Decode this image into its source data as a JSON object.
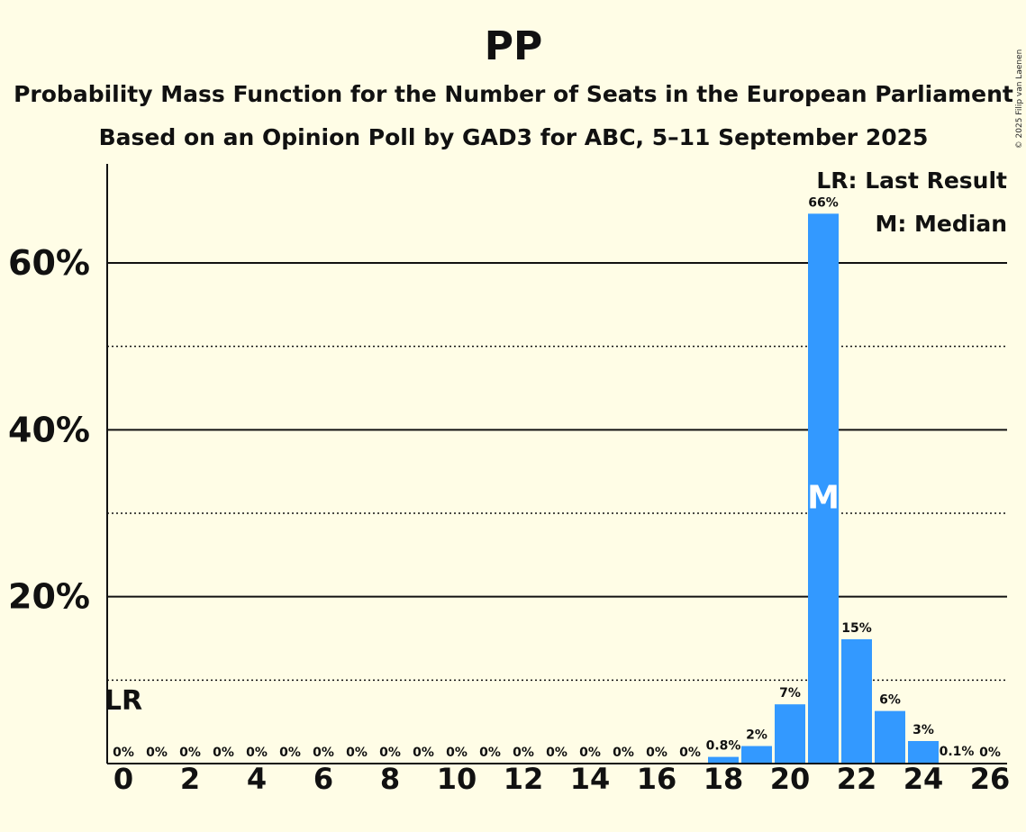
{
  "chart_data": {
    "type": "bar",
    "title": "PP",
    "subtitle_1": "Probability Mass Function for the Number of Seats in the European Parliament",
    "subtitle_2": "Based on an Opinion Poll by GAD3 for ABC, 5–11 September 2025",
    "copyright": "© 2025 Filip van Laenen",
    "x": [
      0,
      1,
      2,
      3,
      4,
      5,
      6,
      7,
      8,
      9,
      10,
      11,
      12,
      13,
      14,
      15,
      16,
      17,
      18,
      19,
      20,
      21,
      22,
      23,
      24,
      25,
      26
    ],
    "values": [
      0,
      0,
      0,
      0,
      0,
      0,
      0,
      0,
      0,
      0,
      0,
      0,
      0,
      0,
      0,
      0,
      0,
      0,
      0.8,
      2.1,
      7.1,
      65.9,
      14.9,
      6.3,
      2.7,
      0.1,
      0
    ],
    "labels": [
      "0%",
      "0%",
      "0%",
      "0%",
      "0%",
      "0%",
      "0%",
      "0%",
      "0%",
      "0%",
      "0%",
      "0%",
      "0%",
      "0%",
      "0%",
      "0%",
      "0%",
      "0%",
      "0.8%",
      "2%",
      "7%",
      "66%",
      "15%",
      "6%",
      "3%",
      "0.1%",
      "0%"
    ],
    "x_tick_labels": [
      "0",
      "2",
      "4",
      "6",
      "8",
      "10",
      "12",
      "14",
      "16",
      "18",
      "20",
      "22",
      "24",
      "26"
    ],
    "y_tick_labels": [
      "20%",
      "40%",
      "60%"
    ],
    "y_major_ticks": [
      20,
      40,
      60
    ],
    "y_minor_ticks": [
      10,
      30,
      50
    ],
    "ylim": [
      0,
      71.8
    ],
    "last_result_seat": 0,
    "last_result_marker": "LR",
    "median_seat": 21,
    "median_marker": "M",
    "legend": [
      "LR: Last Result",
      "M: Median"
    ],
    "bar_color": "#3399FF",
    "grid": true
  }
}
